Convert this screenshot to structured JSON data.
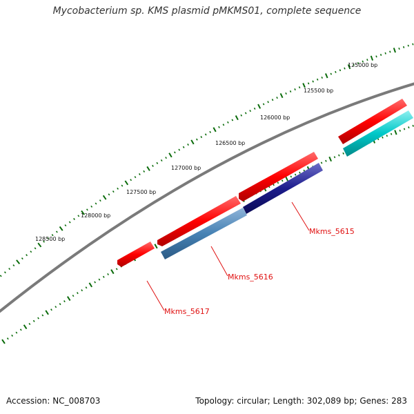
{
  "title": "Mycobacterium sp. KMS plasmid pMKMS01, complete sequence",
  "footer": {
    "accession": "Accession: NC_008703",
    "summary": "Topology: circular; Length: 302,089 bp; Genes: 283"
  },
  "ruler_labels": [
    "125000 bp",
    "125500 bp",
    "126000 bp",
    "126500 bp",
    "127000 bp",
    "127500 bp",
    "128000 bp",
    "128500 bp"
  ],
  "gene_labels": [
    "Mkms_5615",
    "Mkms_5616",
    "Mkms_5617"
  ],
  "colors": {
    "backbone": "#808080",
    "tick": "#0a6b0a",
    "forward_feature": "#ff0000",
    "reverse_feature_blue": "#4682b4",
    "reverse_feature_navy": "#1c1c8c",
    "reverse_feature_cyan": "#00c8c8",
    "label_line": "#e01010"
  }
}
